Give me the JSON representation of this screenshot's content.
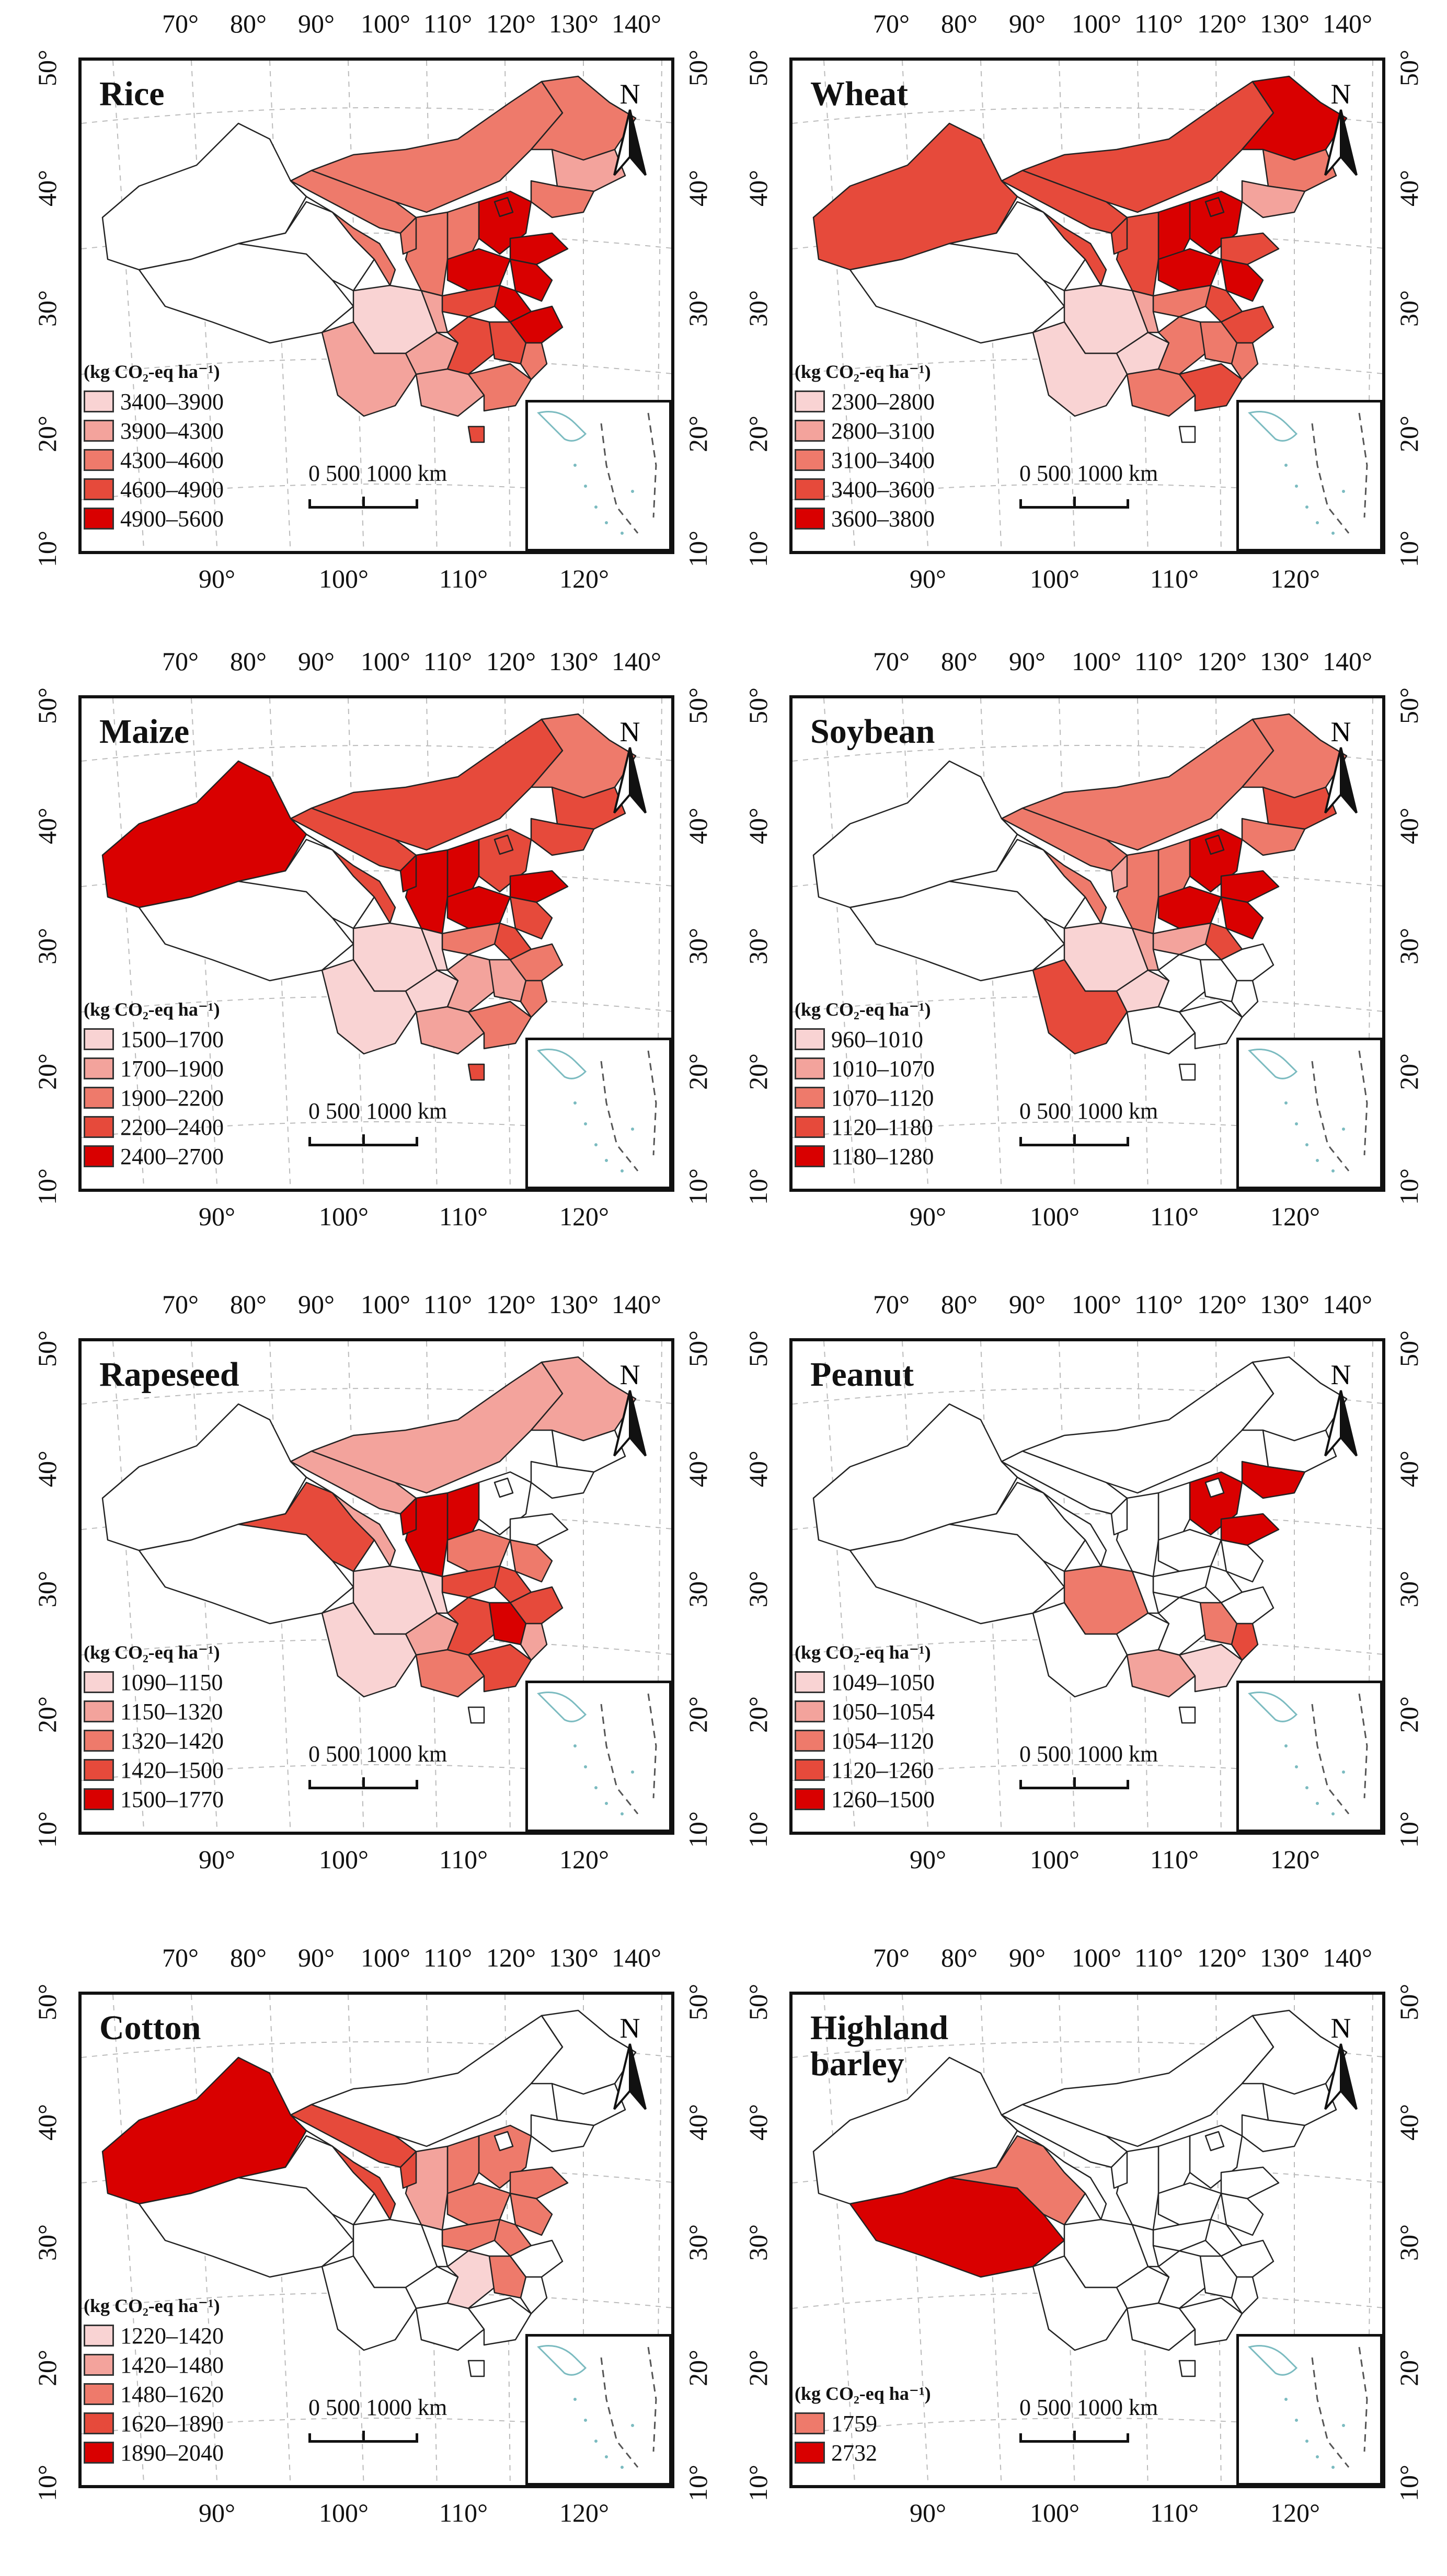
{
  "common": {
    "lon_ticks_top": [
      "70°",
      "80°",
      "90°",
      "100°",
      "110°",
      "120°",
      "130°",
      "140°"
    ],
    "lon_ticks_bottom": [
      "90°",
      "100°",
      "110°",
      "120°"
    ],
    "lat_ticks": [
      "50°",
      "40°",
      "30°",
      "20°",
      "10°"
    ],
    "north_label": "N",
    "scale_text": "0    500   1000 km"
  },
  "legend_unit": "(kg CO₂-eq ha⁻¹)",
  "panels": [
    {
      "title": "Rice",
      "classes": [
        "3400–3900",
        "3900–4300",
        "4300–4600",
        "4600–4900",
        "4900–5600"
      ],
      "colors": [
        "#f9d3d3",
        "#f3a39c",
        "#ee7a6b",
        "#e64a3b",
        "#d90000"
      ]
    },
    {
      "title": "Wheat",
      "classes": [
        "2300–2800",
        "2800–3100",
        "3100–3400",
        "3400–3600",
        "3600–3800"
      ],
      "colors": [
        "#f9d3d3",
        "#f3a39c",
        "#ee7a6b",
        "#e64a3b",
        "#d90000"
      ]
    },
    {
      "title": "Maize",
      "classes": [
        "1500–1700",
        "1700–1900",
        "1900–2200",
        "2200–2400",
        "2400–2700"
      ],
      "colors": [
        "#f9d3d3",
        "#f3a39c",
        "#ee7a6b",
        "#e64a3b",
        "#d90000"
      ]
    },
    {
      "title": "Soybean",
      "classes": [
        "960–1010",
        "1010–1070",
        "1070–1120",
        "1120–1180",
        "1180–1280"
      ],
      "colors": [
        "#f9d3d3",
        "#f3a39c",
        "#ee7a6b",
        "#e64a3b",
        "#d90000"
      ]
    },
    {
      "title": "Rapeseed",
      "classes": [
        "1090–1150",
        "1150–1320",
        "1320–1420",
        "1420–1500",
        "1500–1770"
      ],
      "colors": [
        "#f9d3d3",
        "#f3a39c",
        "#ee7a6b",
        "#e64a3b",
        "#d90000"
      ]
    },
    {
      "title": "Peanut",
      "classes": [
        "1049–1050",
        "1050–1054",
        "1054–1120",
        "1120–1260",
        "1260–1500"
      ],
      "colors": [
        "#f9d3d3",
        "#f3a39c",
        "#ee7a6b",
        "#e64a3b",
        "#d90000"
      ]
    },
    {
      "title": "Cotton",
      "classes": [
        "1220–1420",
        "1420–1480",
        "1480–1620",
        "1620–1890",
        "1890–2040"
      ],
      "colors": [
        "#f9d3d3",
        "#f3a39c",
        "#ee7a6b",
        "#e64a3b",
        "#d90000"
      ]
    },
    {
      "title": "Highland\nbarley",
      "classes": [
        "1759",
        "2732"
      ],
      "colors": [
        "#ee7a6b",
        "#d90000"
      ]
    }
  ]
}
